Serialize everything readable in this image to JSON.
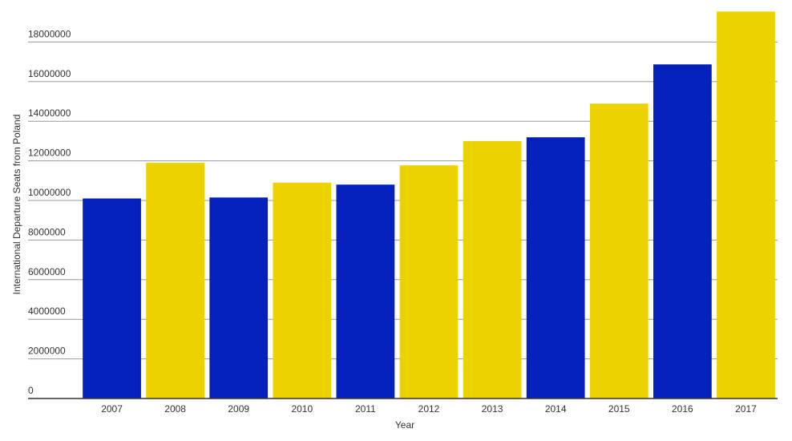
{
  "chart_data": {
    "type": "bar",
    "x_label": "Year",
    "y_label": "International Departure Seats from Poland",
    "categories": [
      "2007",
      "2008",
      "2009",
      "2010",
      "2011",
      "2012",
      "2013",
      "2014",
      "2015",
      "2016",
      "2017"
    ],
    "values": [
      10100000,
      11900000,
      10150000,
      10900000,
      10800000,
      11770000,
      13000000,
      13190000,
      14890000,
      16870000,
      19540000
    ],
    "colors": [
      "#0422bb",
      "#ecd200",
      "#0422bb",
      "#ecd200",
      "#0422bb",
      "#ecd200",
      "#ecd200",
      "#0422bb",
      "#ecd200",
      "#0422bb",
      "#ecd200"
    ],
    "ylim": [
      0,
      20000000
    ],
    "yticks": [
      0,
      2000000,
      4000000,
      6000000,
      8000000,
      10000000,
      12000000,
      14000000,
      16000000,
      18000000
    ],
    "grid": true
  }
}
